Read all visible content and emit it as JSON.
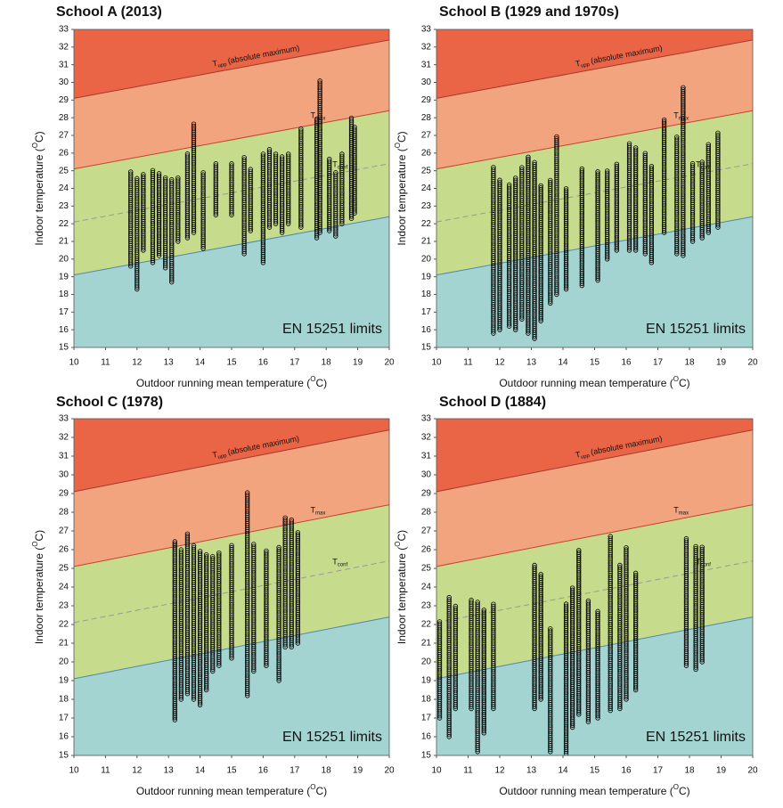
{
  "chart_data": [
    {
      "type": "scatter",
      "title": "School A (2013)",
      "x_label": {
        "text": "Outdoor running mean temperature (",
        "sup": "O",
        "end": "C)"
      },
      "y_label": {
        "text": "Indoor temperature (",
        "sup": "O",
        "end": "C)"
      },
      "xlim": [
        10,
        20
      ],
      "ylim": [
        15,
        33
      ],
      "xticks": [
        10,
        11,
        12,
        13,
        14,
        15,
        16,
        17,
        18,
        19,
        20
      ],
      "yticks": [
        15,
        16,
        17,
        18,
        19,
        20,
        21,
        22,
        23,
        24,
        25,
        26,
        27,
        28,
        29,
        30,
        31,
        32,
        33
      ],
      "limits": {
        "lower": [
          19.1,
          22.4
        ],
        "conf": [
          22.1,
          25.4
        ],
        "max": [
          25.1,
          28.4
        ],
        "upp": [
          29.1,
          32.4
        ]
      },
      "annotations": {
        "t": "T",
        "upp": "upp",
        "upp_text": "(absolute maximum)",
        "max": "max",
        "conf": "conf",
        "standard": "EN 15251 limits"
      },
      "x": [
        11.8,
        12.0,
        12.2,
        12.5,
        12.7,
        12.9,
        13.1,
        13.3,
        13.6,
        13.8,
        14.1,
        14.5,
        15.0,
        15.4,
        15.6,
        16.0,
        16.2,
        16.4,
        16.6,
        16.8,
        17.2,
        17.7,
        17.8,
        18.1,
        18.3,
        18.5,
        18.8,
        18.9
      ],
      "low": [
        19.6,
        18.3,
        20.5,
        19.8,
        20.2,
        19.5,
        18.7,
        21.0,
        21.2,
        21.5,
        20.6,
        22.5,
        22.5,
        20.3,
        21.6,
        19.8,
        21.8,
        22.0,
        21.5,
        22.0,
        21.8,
        21.2,
        21.5,
        21.6,
        21.3,
        22.0,
        22.3,
        22.6
      ],
      "high": [
        25.0,
        24.6,
        24.8,
        25.1,
        24.9,
        24.7,
        24.5,
        24.6,
        26.0,
        27.7,
        25.0,
        25.5,
        25.5,
        25.8,
        25.1,
        26.0,
        26.3,
        26.0,
        25.8,
        26.0,
        27.4,
        28.0,
        30.1,
        25.7,
        25.0,
        26.0,
        28.0,
        27.5
      ]
    },
    {
      "type": "scatter",
      "title": "School B (1929 and 1970s)",
      "x_label": {
        "text": "Outdoor running mean temperature (",
        "sup": "O",
        "end": "C)"
      },
      "y_label": {
        "text": "Indoor temperature (",
        "sup": "O",
        "end": "C)"
      },
      "xlim": [
        10,
        20
      ],
      "ylim": [
        15,
        33
      ],
      "xticks": [
        10,
        11,
        12,
        13,
        14,
        15,
        16,
        17,
        18,
        19,
        20
      ],
      "yticks": [
        15,
        16,
        17,
        18,
        19,
        20,
        21,
        22,
        23,
        24,
        25,
        26,
        27,
        28,
        29,
        30,
        31,
        32,
        33
      ],
      "limits": {
        "lower": [
          19.1,
          22.4
        ],
        "conf": [
          22.1,
          25.4
        ],
        "max": [
          25.1,
          28.4
        ],
        "upp": [
          29.1,
          32.4
        ]
      },
      "annotations": {
        "t": "T",
        "upp": "upp",
        "upp_text": "(absolute maximum)",
        "max": "max",
        "conf": "conf",
        "standard": "EN 15251 limits"
      },
      "x": [
        11.8,
        12.0,
        12.3,
        12.5,
        12.7,
        12.9,
        13.1,
        13.3,
        13.6,
        13.8,
        14.1,
        14.6,
        15.1,
        15.4,
        15.7,
        16.1,
        16.3,
        16.6,
        16.8,
        17.2,
        17.6,
        17.8,
        18.1,
        18.4,
        18.6,
        18.9
      ],
      "low": [
        15.8,
        16.0,
        16.2,
        16.0,
        16.6,
        15.8,
        15.5,
        16.5,
        17.5,
        18.0,
        18.3,
        18.5,
        18.8,
        20.0,
        20.5,
        20.5,
        20.5,
        20.3,
        19.8,
        21.5,
        20.3,
        20.2,
        21.0,
        21.2,
        21.5,
        21.8
      ],
      "high": [
        25.3,
        24.5,
        24.3,
        24.6,
        25.2,
        25.8,
        25.5,
        24.2,
        24.5,
        27.0,
        24.0,
        25.2,
        25.0,
        25.0,
        25.4,
        26.6,
        26.4,
        26.0,
        25.3,
        27.9,
        27.0,
        29.8,
        25.5,
        25.5,
        26.5,
        27.2
      ]
    },
    {
      "type": "scatter",
      "title": "School C (1978)",
      "x_label": {
        "text": "Outdoor running mean temperature (",
        "sup": "O",
        "end": "C)"
      },
      "y_label": {
        "text": "Indoor temperature (",
        "sup": "O",
        "end": "C)"
      },
      "xlim": [
        10,
        20
      ],
      "ylim": [
        15,
        33
      ],
      "xticks": [
        10,
        11,
        12,
        13,
        14,
        15,
        16,
        17,
        18,
        19,
        20
      ],
      "yticks": [
        15,
        16,
        17,
        18,
        19,
        20,
        21,
        22,
        23,
        24,
        25,
        26,
        27,
        28,
        29,
        30,
        31,
        32,
        33
      ],
      "limits": {
        "lower": [
          19.1,
          22.4
        ],
        "conf": [
          22.1,
          25.4
        ],
        "max": [
          25.1,
          28.4
        ],
        "upp": [
          29.1,
          32.4
        ]
      },
      "annotations": {
        "t": "T",
        "upp": "upp",
        "upp_text": "(absolute maximum)",
        "max": "max",
        "conf": "conf",
        "standard": "EN 15251 limits"
      },
      "x": [
        13.2,
        13.4,
        13.6,
        13.8,
        14.0,
        14.2,
        14.4,
        14.6,
        15.0,
        15.5,
        15.7,
        16.1,
        16.5,
        16.7,
        16.9,
        17.1
      ],
      "low": [
        16.9,
        18.0,
        18.3,
        18.0,
        17.7,
        18.5,
        19.5,
        19.8,
        20.2,
        18.2,
        19.5,
        19.8,
        19.0,
        20.8,
        20.8,
        21.0
      ],
      "high": [
        26.5,
        26.0,
        26.9,
        26.3,
        26.0,
        25.8,
        25.7,
        25.9,
        26.3,
        29.1,
        26.3,
        26.0,
        26.2,
        27.7,
        27.6,
        27.0
      ]
    },
    {
      "type": "scatter",
      "title": "School D (1884)",
      "x_label": {
        "text": "Outdoor running mean temperature (",
        "sup": "O",
        "end": "C)"
      },
      "y_label": {
        "text": "Indoor temperature (",
        "sup": "O",
        "end": "C)"
      },
      "xlim": [
        10,
        20
      ],
      "ylim": [
        15,
        33
      ],
      "xticks": [
        10,
        11,
        12,
        13,
        14,
        15,
        16,
        17,
        18,
        19,
        20
      ],
      "yticks": [
        15,
        16,
        17,
        18,
        19,
        20,
        21,
        22,
        23,
        24,
        25,
        26,
        27,
        28,
        29,
        30,
        31,
        32,
        33
      ],
      "limits": {
        "lower": [
          19.1,
          22.4
        ],
        "conf": [
          22.1,
          25.4
        ],
        "max": [
          25.1,
          28.4
        ],
        "upp": [
          29.1,
          32.4
        ]
      },
      "annotations": {
        "t": "T",
        "upp": "upp",
        "upp_text": "(absolute maximum)",
        "max": "max",
        "conf": "conf",
        "standard": "EN 15251 limits"
      },
      "x": [
        10.1,
        10.4,
        10.6,
        11.1,
        11.3,
        11.5,
        11.8,
        13.1,
        13.3,
        13.6,
        14.1,
        14.3,
        14.5,
        14.8,
        15.1,
        15.5,
        15.8,
        16.0,
        16.3,
        17.9,
        18.2,
        18.4
      ],
      "low": [
        17.0,
        16.0,
        17.5,
        17.5,
        15.2,
        16.2,
        17.5,
        17.5,
        18.0,
        15.2,
        15.1,
        16.5,
        17.2,
        16.8,
        17.0,
        17.4,
        17.5,
        18.0,
        18.5,
        19.8,
        19.6,
        20.0
      ],
      "high": [
        22.2,
        23.5,
        23.0,
        23.4,
        23.3,
        22.8,
        23.1,
        25.2,
        24.7,
        21.8,
        23.2,
        24.0,
        26.0,
        23.3,
        22.8,
        26.8,
        25.2,
        26.2,
        24.8,
        26.6,
        26.2,
        26.2
      ]
    }
  ]
}
